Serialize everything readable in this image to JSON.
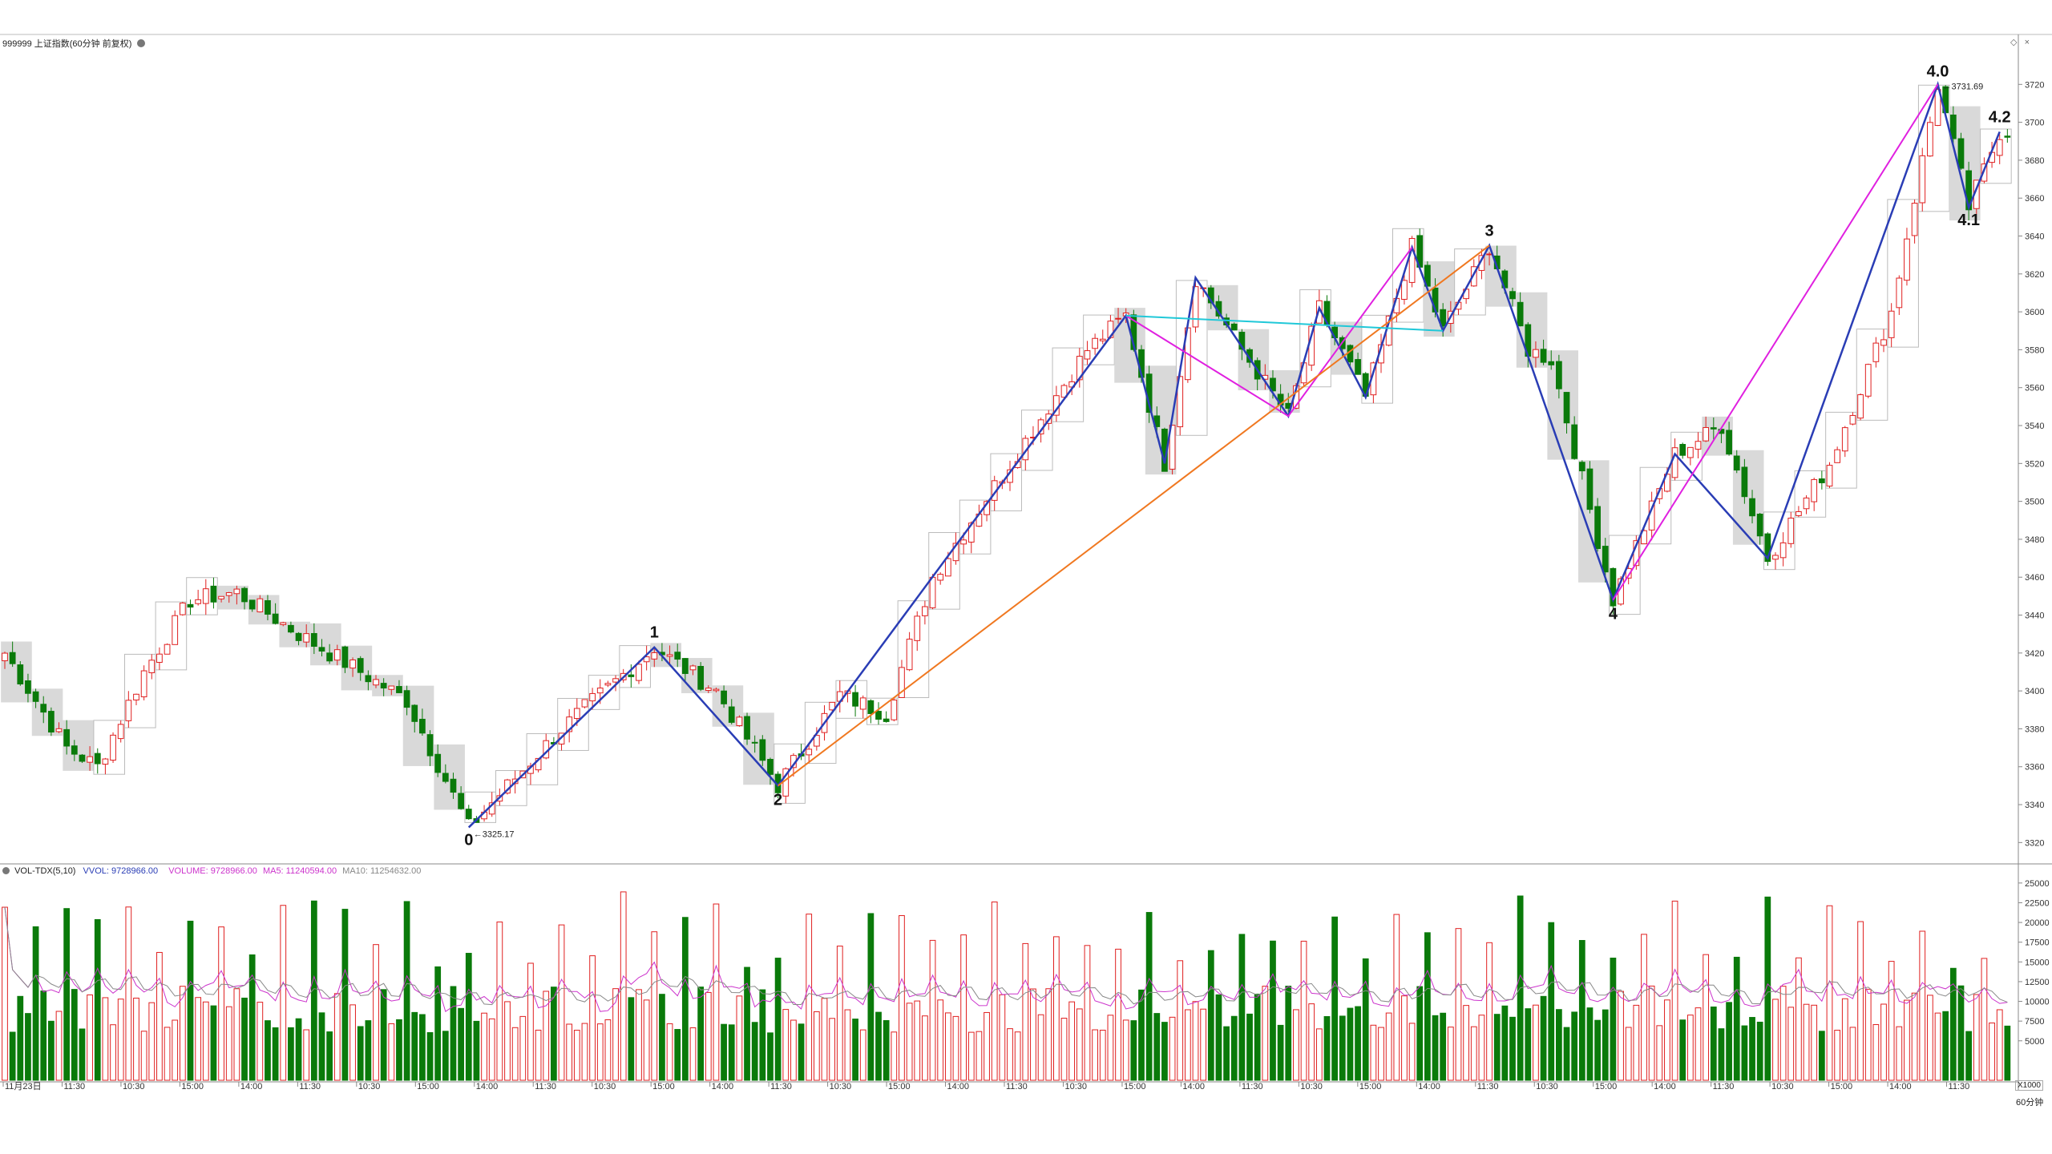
{
  "window": {
    "title": "999999 上证指数(60分钟 前复权)"
  },
  "header": {
    "volume_indicator": "VOL-TDX(5,10)",
    "vvol": "VVOL: 9728966.00",
    "volume": "VOLUME: 9728966.00",
    "ma5": "MA5: 11240594.00",
    "ma10": "MA10: 11254632.00"
  },
  "colors": {
    "up": "#e02020",
    "down": "#0a7a0a",
    "wave": "#2a3db5",
    "magenta": "#e020e0",
    "orange": "#f07820",
    "cyan": "#20c8d8",
    "ma5": "#cc33cc",
    "ma10": "#888888"
  },
  "icons": {
    "settings": "circle-gear-icon",
    "close": "close-icon",
    "diamond": "diamond-icon"
  },
  "chart_data": [
    {
      "type": "candlestick",
      "title": "999999 上证指数(60分钟 前复权)",
      "period": "60分钟",
      "ylim": [
        3310,
        3740
      ],
      "y_ticks": [
        3320,
        3340,
        3360,
        3380,
        3400,
        3420,
        3440,
        3460,
        3480,
        3500,
        3520,
        3540,
        3560,
        3580,
        3600,
        3620,
        3640,
        3660,
        3680,
        3700,
        3720
      ],
      "x_tick_labels": [
        "11月23日",
        "11:30",
        "10:30",
        "15:00",
        "14:00",
        "11:30",
        "10:30",
        "15:00",
        "14:00",
        "11:30",
        "10:30",
        "15:00",
        "14:00",
        "11:30",
        "10:30",
        "15:00",
        "14:00",
        "11:30",
        "10:30",
        "15:00",
        "14:00",
        "11:30",
        "10:30",
        "15:00",
        "14:00",
        "11:30",
        "10:30",
        "15:00",
        "14:00",
        "11:30",
        "10:30",
        "15:00",
        "14:00",
        "11:30"
      ],
      "wave_points": [
        {
          "label": "0",
          "value": 3325.17
        },
        {
          "label": "1",
          "value": 3423
        },
        {
          "label": "2",
          "value": 3350
        },
        {
          "label": "3",
          "value": 3637
        },
        {
          "label": "4",
          "value": 3448
        },
        {
          "label": "4.0",
          "value": 3731.69
        },
        {
          "label": "4.1",
          "value": 3636
        },
        {
          "label": "4.2",
          "value": 3695
        }
      ],
      "annotations": [
        "3325.17",
        "3731.69"
      ],
      "anchors": [
        {
          "i": 0,
          "v": 3420
        },
        {
          "i": 8,
          "v": 3370
        },
        {
          "i": 12,
          "v": 3360
        },
        {
          "i": 18,
          "v": 3410
        },
        {
          "i": 24,
          "v": 3448
        },
        {
          "i": 30,
          "v": 3452
        },
        {
          "i": 38,
          "v": 3430
        },
        {
          "i": 46,
          "v": 3410
        },
        {
          "i": 52,
          "v": 3395
        },
        {
          "i": 60,
          "v": 3328
        },
        {
          "i": 72,
          "v": 3380
        },
        {
          "i": 84,
          "v": 3423
        },
        {
          "i": 92,
          "v": 3400
        },
        {
          "i": 100,
          "v": 3350
        },
        {
          "i": 108,
          "v": 3398
        },
        {
          "i": 114,
          "v": 3388
        },
        {
          "i": 120,
          "v": 3460
        },
        {
          "i": 130,
          "v": 3520
        },
        {
          "i": 140,
          "v": 3580
        },
        {
          "i": 145,
          "v": 3598
        },
        {
          "i": 150,
          "v": 3520
        },
        {
          "i": 154,
          "v": 3618
        },
        {
          "i": 160,
          "v": 3580
        },
        {
          "i": 166,
          "v": 3545
        },
        {
          "i": 170,
          "v": 3602
        },
        {
          "i": 176,
          "v": 3555
        },
        {
          "i": 182,
          "v": 3634
        },
        {
          "i": 186,
          "v": 3590
        },
        {
          "i": 192,
          "v": 3635
        },
        {
          "i": 197,
          "v": 3580
        },
        {
          "i": 200,
          "v": 3575
        },
        {
          "i": 208,
          "v": 3448
        },
        {
          "i": 216,
          "v": 3525
        },
        {
          "i": 222,
          "v": 3540
        },
        {
          "i": 228,
          "v": 3470
        },
        {
          "i": 236,
          "v": 3520
        },
        {
          "i": 244,
          "v": 3600
        },
        {
          "i": 250,
          "v": 3720
        },
        {
          "i": 254,
          "v": 3655
        },
        {
          "i": 258,
          "v": 3695
        }
      ]
    },
    {
      "type": "bar",
      "title": "VOL-TDX(5,10)",
      "ylim": [
        0,
        26000
      ],
      "y_ticks": [
        5000,
        7500,
        10000,
        12500,
        15000,
        17500,
        20000,
        22500,
        25000
      ],
      "y_tick_labels": [
        "5000",
        "7500",
        "10000",
        "12500",
        "15000",
        "17500",
        "20000",
        "22500",
        "25000"
      ],
      "unit_label": "X1000",
      "series": [
        {
          "name": "VOLUME"
        },
        {
          "name": "MA5"
        },
        {
          "name": "MA10"
        }
      ]
    }
  ],
  "footer": {
    "period_label": "60分钟"
  }
}
